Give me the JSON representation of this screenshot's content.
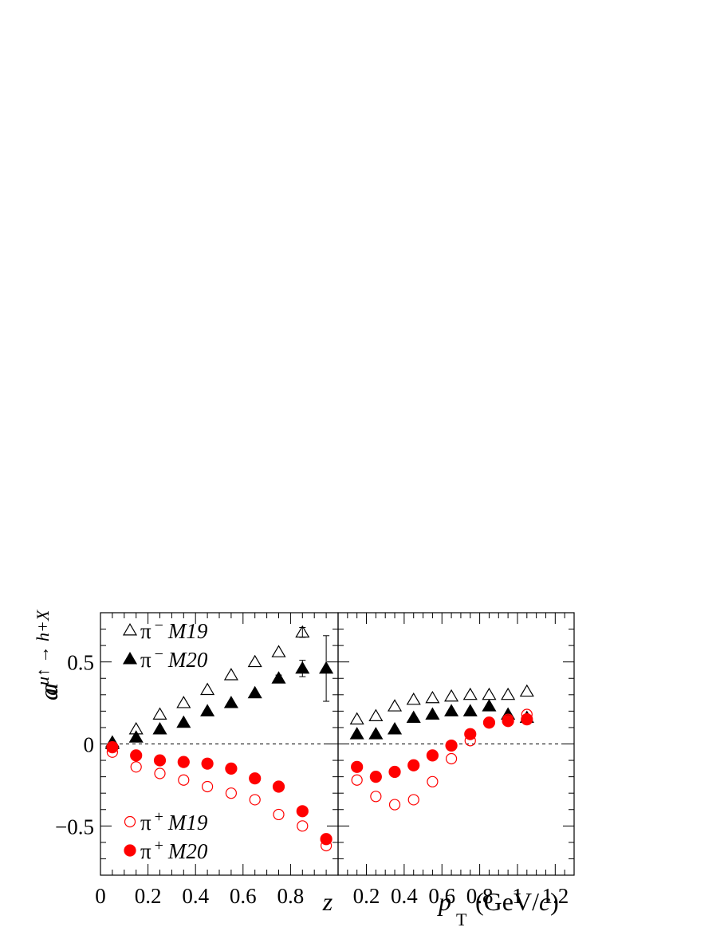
{
  "chart_data": [
    {
      "type": "scatter",
      "panel": "left",
      "xlabel": "z",
      "ylabel": "a^{u↑ → h+X}",
      "xlim": [
        0,
        1.0
      ],
      "ylim": [
        -0.8,
        0.8
      ],
      "x_ticks": [
        "0",
        "0.2",
        "0.4",
        "0.6",
        "0.8"
      ],
      "y_ticks": [
        "0.5",
        "0",
        "−0.5"
      ],
      "zero_line": "dashed",
      "legend": {
        "placement": "inside-left",
        "entries": [
          {
            "particle": "π",
            "charge": "−",
            "model": "M19",
            "marker": "open-triangle",
            "color": "#000000"
          },
          {
            "particle": "π",
            "charge": "−",
            "model": "M20",
            "marker": "filled-triangle",
            "color": "#000000"
          },
          {
            "particle": "π",
            "charge": "+",
            "model": "M19",
            "marker": "open-circle",
            "color": "#ff0000"
          },
          {
            "particle": "π",
            "charge": "+",
            "model": "M20",
            "marker": "filled-circle",
            "color": "#ff0000"
          }
        ]
      },
      "series": [
        {
          "name": "π− M19",
          "marker": "open-triangle",
          "color": "#000000",
          "x": [
            0.05,
            0.15,
            0.25,
            0.35,
            0.45,
            0.55,
            0.65,
            0.75,
            0.85
          ],
          "y": [
            0.01,
            0.09,
            0.18,
            0.25,
            0.33,
            0.42,
            0.5,
            0.56,
            0.68
          ],
          "err": [
            0,
            0,
            0,
            0,
            0,
            0,
            0,
            0,
            0.03
          ]
        },
        {
          "name": "π− M20",
          "marker": "filled-triangle",
          "color": "#000000",
          "x": [
            0.05,
            0.15,
            0.25,
            0.35,
            0.45,
            0.55,
            0.65,
            0.75,
            0.85,
            0.95
          ],
          "y": [
            0.0,
            0.04,
            0.09,
            0.13,
            0.2,
            0.25,
            0.31,
            0.4,
            0.46,
            0.46
          ],
          "err": [
            0,
            0,
            0,
            0,
            0,
            0,
            0,
            0.02,
            0.05,
            0.2
          ]
        },
        {
          "name": "π+ M19",
          "marker": "open-circle",
          "color": "#ff0000",
          "x": [
            0.05,
            0.15,
            0.25,
            0.35,
            0.45,
            0.55,
            0.65,
            0.75,
            0.85,
            0.95
          ],
          "y": [
            -0.05,
            -0.14,
            -0.18,
            -0.22,
            -0.26,
            -0.3,
            -0.34,
            -0.43,
            -0.5,
            -0.62
          ],
          "err": [
            0,
            0,
            0,
            0,
            0,
            0,
            0,
            0,
            0,
            0
          ]
        },
        {
          "name": "π+ M20",
          "marker": "filled-circle",
          "color": "#ff0000",
          "x": [
            0.05,
            0.15,
            0.25,
            0.35,
            0.45,
            0.55,
            0.65,
            0.75,
            0.85,
            0.95
          ],
          "y": [
            -0.02,
            -0.07,
            -0.1,
            -0.11,
            -0.12,
            -0.15,
            -0.21,
            -0.26,
            -0.41,
            -0.58
          ],
          "err": [
            0,
            0,
            0,
            0,
            0,
            0,
            0,
            0,
            0,
            0.03
          ]
        }
      ]
    },
    {
      "type": "scatter",
      "panel": "right",
      "xlabel": "p_T (GeV/c)",
      "xlim": [
        0.05,
        1.3
      ],
      "ylim": [
        -0.8,
        0.8
      ],
      "x_ticks": [
        "0.2",
        "0.4",
        "0.6",
        "0.8",
        "1",
        "1.2"
      ],
      "zero_line": "dashed",
      "series": [
        {
          "name": "π− M19",
          "marker": "open-triangle",
          "color": "#000000",
          "x": [
            0.15,
            0.25,
            0.35,
            0.45,
            0.55,
            0.65,
            0.75,
            0.85,
            0.95,
            1.05
          ],
          "y": [
            0.15,
            0.17,
            0.23,
            0.27,
            0.28,
            0.29,
            0.3,
            0.3,
            0.3,
            0.32
          ],
          "err": [
            0,
            0,
            0,
            0,
            0,
            0,
            0,
            0,
            0,
            0
          ]
        },
        {
          "name": "π− M20",
          "marker": "filled-triangle",
          "color": "#000000",
          "x": [
            0.15,
            0.25,
            0.35,
            0.45,
            0.55,
            0.65,
            0.75,
            0.85,
            0.95,
            1.05
          ],
          "y": [
            0.06,
            0.06,
            0.09,
            0.16,
            0.18,
            0.2,
            0.2,
            0.23,
            0.18,
            0.16
          ],
          "err": [
            0,
            0,
            0,
            0,
            0,
            0,
            0,
            0,
            0,
            0.02
          ]
        },
        {
          "name": "π+ M19",
          "marker": "open-circle",
          "color": "#ff0000",
          "x": [
            0.15,
            0.25,
            0.35,
            0.45,
            0.55,
            0.65,
            0.75,
            0.85,
            0.95,
            1.05
          ],
          "y": [
            -0.22,
            -0.32,
            -0.37,
            -0.34,
            -0.23,
            -0.09,
            0.02,
            0.13,
            0.15,
            0.18
          ],
          "err": [
            0,
            0,
            0,
            0,
            0,
            0,
            0,
            0,
            0,
            0
          ]
        },
        {
          "name": "π+ M20",
          "marker": "filled-circle",
          "color": "#ff0000",
          "x": [
            0.15,
            0.25,
            0.35,
            0.45,
            0.55,
            0.65,
            0.75,
            0.85,
            0.95,
            1.05
          ],
          "y": [
            -0.14,
            -0.2,
            -0.17,
            -0.13,
            -0.07,
            -0.01,
            0.06,
            0.13,
            0.14,
            0.15
          ],
          "err": [
            0,
            0,
            0,
            0,
            0,
            0,
            0,
            0,
            0,
            0.03
          ]
        }
      ]
    }
  ]
}
